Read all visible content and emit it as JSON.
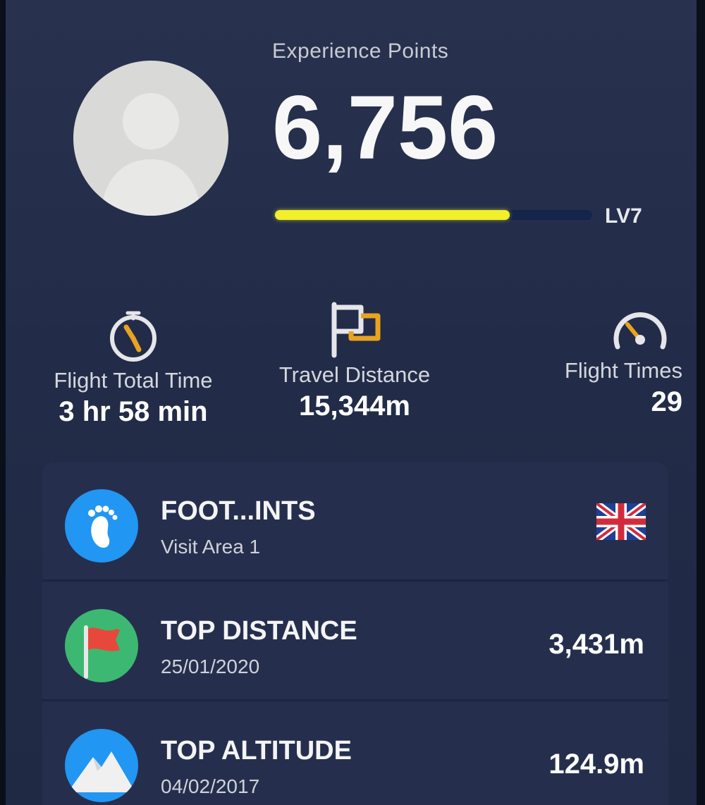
{
  "profile": {
    "xp_label": "Experience Points",
    "xp_value": "6,756",
    "level_label": "LV7",
    "level_progress": 0.74
  },
  "stats": {
    "flight_total_time": {
      "label": "Flight Total Time",
      "value": "3 hr 58 min",
      "icon": "stopwatch-icon"
    },
    "travel_distance": {
      "label": "Travel Distance",
      "value": "15,344m",
      "icon": "flag-icon"
    },
    "flight_times": {
      "label": "Flight Times",
      "value": "29",
      "icon": "speedometer-icon"
    }
  },
  "records": [
    {
      "title": "FOOT...INTS",
      "subtitle": "Visit Area 1",
      "icon": "footprint-icon",
      "trailing": "uk-flag-icon",
      "badge_color": "#2196f3"
    },
    {
      "title": "TOP DISTANCE",
      "subtitle": "25/01/2020",
      "value": "3,431m",
      "icon": "red-flag-icon",
      "badge_color": "#3db872"
    },
    {
      "title": "TOP ALTITUDE",
      "subtitle": "04/02/2017",
      "value": "124.9m",
      "icon": "mountain-icon",
      "badge_color": "#2196f3"
    }
  ],
  "colors": {
    "progress_fill": "#f1f02a",
    "accent_orange": "#e9a321",
    "background": "#252f4d"
  }
}
